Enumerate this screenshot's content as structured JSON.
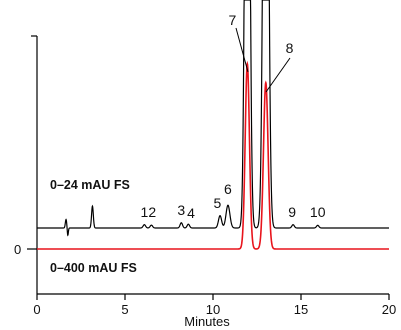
{
  "chart_data": {
    "type": "line",
    "xlabel": "Minutes",
    "ylabel": "",
    "xlim": [
      0,
      20
    ],
    "x_ticks": [
      {
        "value": 0,
        "label": "0"
      },
      {
        "value": 5,
        "label": "5"
      },
      {
        "value": 10,
        "label": "10"
      },
      {
        "value": 15,
        "label": "15"
      },
      {
        "value": 20,
        "label": "20"
      }
    ],
    "y_ticks": [
      {
        "label": "0"
      }
    ],
    "grid": false,
    "series": [
      {
        "name": "0–24 mAU FS",
        "color": "#000000",
        "baseline": 0,
        "peaks": [
          {
            "t": 1.65,
            "h": 0.9,
            "w": 0.04
          },
          {
            "t": 3.15,
            "h": 2.3,
            "w": 0.05
          },
          {
            "t": 6.1,
            "h": 0.35,
            "w": 0.07
          },
          {
            "t": 6.5,
            "h": 0.3,
            "w": 0.07
          },
          {
            "t": 8.2,
            "h": 0.55,
            "w": 0.07
          },
          {
            "t": 8.6,
            "h": 0.4,
            "w": 0.07
          },
          {
            "t": 10.4,
            "h": 1.3,
            "w": 0.09
          },
          {
            "t": 10.85,
            "h": 2.4,
            "w": 0.11
          },
          {
            "t": 11.95,
            "h": 80,
            "w": 0.12
          },
          {
            "t": 13.0,
            "h": 80,
            "w": 0.13
          },
          {
            "t": 14.55,
            "h": 0.35,
            "w": 0.07
          },
          {
            "t": 15.95,
            "h": 0.28,
            "w": 0.07
          }
        ]
      },
      {
        "name": "0–400 mAU FS",
        "color": "#e8141c",
        "baseline": 0,
        "peaks": [
          {
            "t": 11.95,
            "h": 19.5,
            "w": 0.12
          },
          {
            "t": 13.0,
            "h": 17.5,
            "w": 0.13
          }
        ]
      }
    ],
    "peak_labels": [
      {
        "text": "1",
        "t": 6.1
      },
      {
        "text": "2",
        "t": 6.55
      },
      {
        "text": "3",
        "t": 8.2
      },
      {
        "text": "4",
        "t": 8.75
      },
      {
        "text": "5",
        "t": 10.25
      },
      {
        "text": "6",
        "t": 10.85
      },
      {
        "text": "7",
        "t": 11.1
      },
      {
        "text": "8",
        "t": 14.35
      },
      {
        "text": "9",
        "t": 14.5
      },
      {
        "text": "10",
        "t": 15.95
      }
    ],
    "annotations": [
      "0–24 mAU FS",
      "0–400 mAU FS"
    ]
  }
}
